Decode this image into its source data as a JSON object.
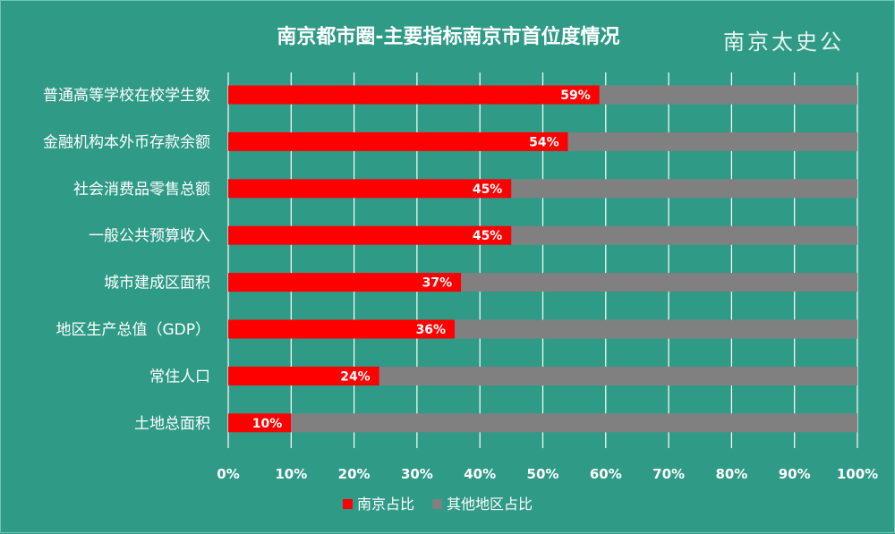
{
  "watermark": "南京太史公",
  "chart_data": {
    "type": "bar",
    "orientation": "horizontal",
    "stacked": true,
    "title": "南京都市圈-主要指标南京市首位度情况",
    "categories": [
      "普通高等学校在校学生数",
      "金融机构本外币存款余额",
      "社会消费品零售总额",
      "一般公共预算收入",
      "城市建成区面积",
      "地区生产总值（GDP）",
      "常住人口",
      "土地总面积"
    ],
    "series": [
      {
        "name": "南京占比",
        "color": "#ff0000",
        "values": [
          59,
          54,
          45,
          45,
          37,
          36,
          24,
          10
        ],
        "labels": [
          "59%",
          "54%",
          "45%",
          "45%",
          "37%",
          "36%",
          "24%",
          "10%"
        ]
      },
      {
        "name": "其他地区占比",
        "color": "#808080",
        "values": [
          41,
          46,
          55,
          55,
          63,
          64,
          76,
          90
        ]
      }
    ],
    "xlim": [
      0,
      100
    ],
    "xticks": [
      "0%",
      "10%",
      "20%",
      "30%",
      "40%",
      "50%",
      "60%",
      "70%",
      "80%",
      "90%",
      "100%"
    ],
    "grid": true,
    "legend_position": "bottom"
  }
}
